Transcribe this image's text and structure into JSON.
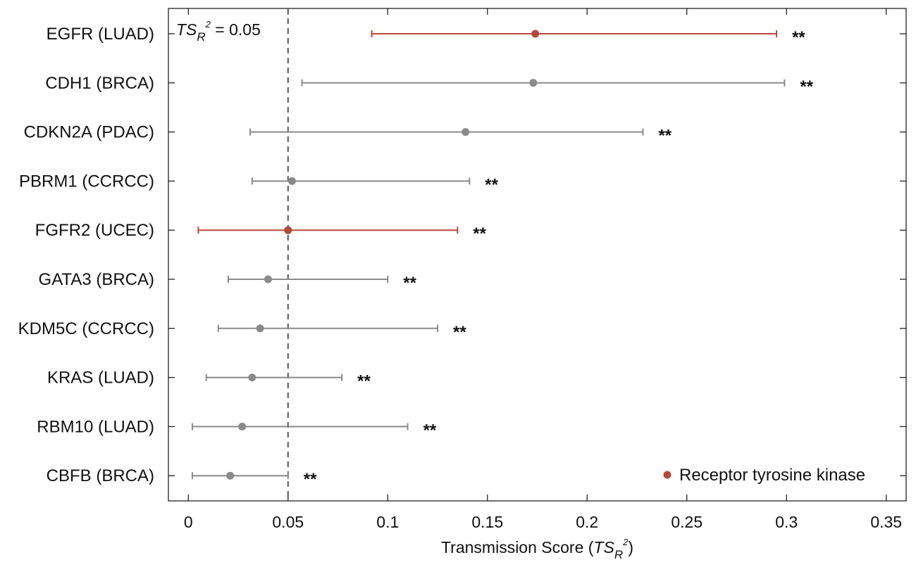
{
  "chart_data": {
    "type": "forest",
    "xlabel_main": "Transmission Score (",
    "xlabel_symbol": "TS",
    "xlabel_sub": "R",
    "xlabel_sup": "2",
    "xlabel_close": ")",
    "xlim": [
      -0.01,
      0.36
    ],
    "xticks": [
      0,
      0.05,
      0.1,
      0.15,
      0.2,
      0.25,
      0.3,
      0.35
    ],
    "xtick_labels": [
      "0",
      "0.05",
      "0.1",
      "0.15",
      "0.2",
      "0.25",
      "0.3",
      "0.35"
    ],
    "reference_line": {
      "value": 0.05,
      "label_symbol": "TS",
      "label_sub": "R",
      "label_sup": "2",
      "label_value": " = 0.05"
    },
    "rows": [
      {
        "label": "EGFR (LUAD)",
        "estimate": 0.174,
        "lower": 0.092,
        "upper": 0.295,
        "significance": "**",
        "group": "Receptor tyrosine kinase"
      },
      {
        "label": "CDH1 (BRCA)",
        "estimate": 0.173,
        "lower": 0.057,
        "upper": 0.299,
        "significance": "**",
        "group": "other"
      },
      {
        "label": "CDKN2A (PDAC)",
        "estimate": 0.139,
        "lower": 0.031,
        "upper": 0.228,
        "significance": "**",
        "group": "other"
      },
      {
        "label": "PBRM1 (CCRCC)",
        "estimate": 0.052,
        "lower": 0.032,
        "upper": 0.141,
        "significance": "**",
        "group": "other"
      },
      {
        "label": "FGFR2 (UCEC)",
        "estimate": 0.05,
        "lower": 0.005,
        "upper": 0.135,
        "significance": "**",
        "group": "Receptor tyrosine kinase"
      },
      {
        "label": "GATA3 (BRCA)",
        "estimate": 0.04,
        "lower": 0.02,
        "upper": 0.1,
        "significance": "**",
        "group": "other"
      },
      {
        "label": "KDM5C (CCRCC)",
        "estimate": 0.036,
        "lower": 0.015,
        "upper": 0.125,
        "significance": "**",
        "group": "other"
      },
      {
        "label": "KRAS (LUAD)",
        "estimate": 0.032,
        "lower": 0.009,
        "upper": 0.077,
        "significance": "**",
        "group": "other"
      },
      {
        "label": "RBM10 (LUAD)",
        "estimate": 0.027,
        "lower": 0.002,
        "upper": 0.11,
        "significance": "**",
        "group": "other"
      },
      {
        "label": "CBFB (BRCA)",
        "estimate": 0.021,
        "lower": 0.002,
        "upper": 0.05,
        "significance": "**",
        "group": "other"
      }
    ],
    "colors": {
      "Receptor tyrosine kinase": "#b5483a",
      "other": "#8a8a8a",
      "reference_line": "#555555",
      "axis": "#222222"
    },
    "legend": {
      "entries": [
        "Receptor tyrosine kinase"
      ],
      "placement": "bottom-right"
    },
    "grid": false
  }
}
